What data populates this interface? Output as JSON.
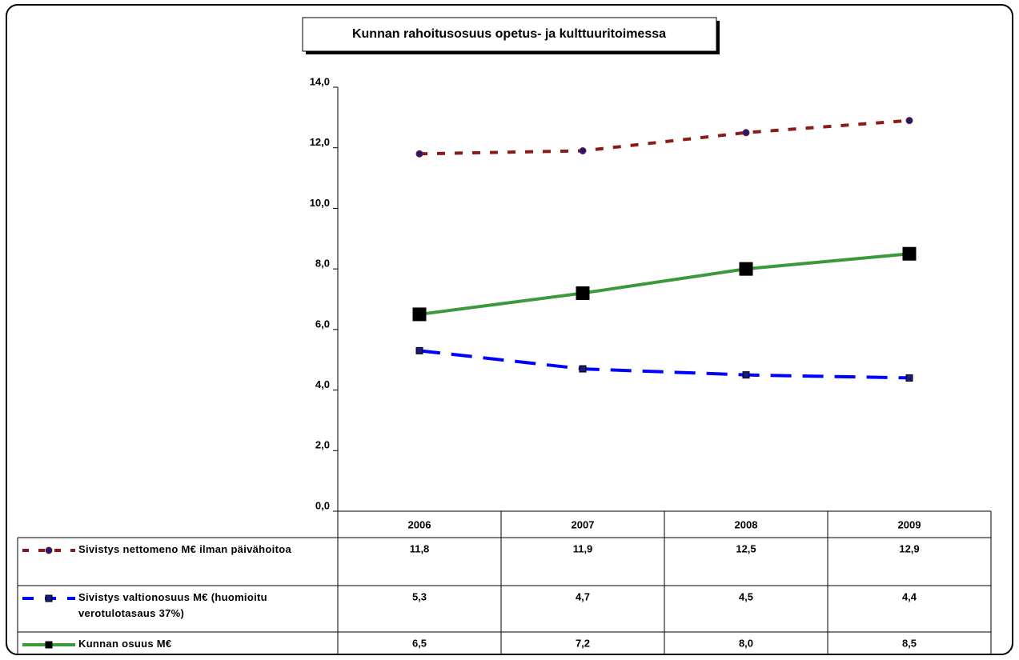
{
  "chart_data": {
    "type": "line",
    "title": "Kunnan rahoitusosuus opetus- ja kulttuuritoimessa",
    "categories": [
      "2006",
      "2007",
      "2008",
      "2009"
    ],
    "series": [
      {
        "name": "Sivistys nettomeno M€ ilman päivähoitoa",
        "color": "#8b1a1a",
        "values": [
          11.8,
          11.9,
          12.5,
          12.9
        ],
        "value_labels": [
          "11,8",
          "11,9",
          "12,5",
          "12,9"
        ]
      },
      {
        "name": "Sivistys valtionosuus M€ (huomioitu verotulotasaus 37%)",
        "color": "#0000ff",
        "values": [
          5.3,
          4.7,
          4.5,
          4.4
        ],
        "value_labels": [
          "5,3",
          "4,7",
          "4,5",
          "4,4"
        ]
      },
      {
        "name": "Kunnan osuus M€",
        "color": "#3a9a3a",
        "values": [
          6.5,
          7.2,
          8.0,
          8.5
        ],
        "value_labels": [
          "6,5",
          "7,2",
          "8,0",
          "8,5"
        ]
      }
    ],
    "ylim": [
      0,
      14
    ],
    "yticks": [
      {
        "value": 0,
        "label": "0,0"
      },
      {
        "value": 2,
        "label": "2,0"
      },
      {
        "value": 4,
        "label": "4,0"
      },
      {
        "value": 6,
        "label": "6,0"
      },
      {
        "value": 8,
        "label": "8,0"
      },
      {
        "value": 10,
        "label": "10,0"
      },
      {
        "value": 12,
        "label": "12,0"
      },
      {
        "value": 14,
        "label": "14,0"
      }
    ],
    "grid": false
  }
}
